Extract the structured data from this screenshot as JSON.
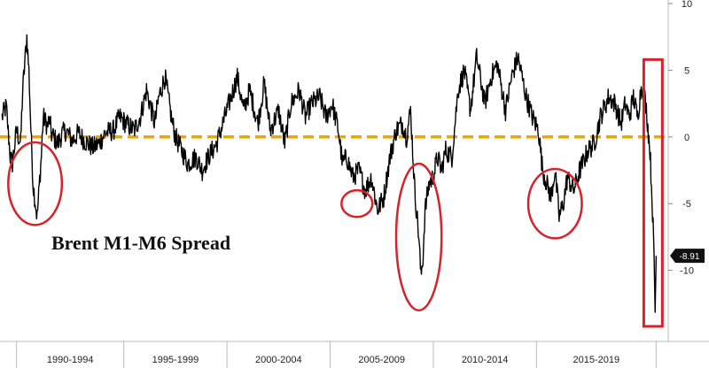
{
  "chart_data": {
    "type": "line",
    "title": "Brent M1-M6 Spread",
    "x_categories": [
      "1990-1994",
      "1995-1999",
      "2000-2004",
      "2005-2009",
      "2010-2014",
      "2015-2019"
    ],
    "ylim": [
      -15,
      10
    ],
    "y_ticks": [
      10,
      5,
      0,
      -5,
      -10
    ],
    "y_tick_labels": [
      "10",
      "5",
      "0",
      "-5",
      "-10"
    ],
    "y_axis_position": "right",
    "grid": false,
    "reference_line": {
      "value": 0,
      "color": "#f0a500",
      "style": "dashed"
    },
    "last_value": -8.91,
    "last_value_label": "-8.91",
    "series": [
      {
        "color": "#000000",
        "x": [
          1988.6,
          1988.8,
          1989.0,
          1989.1,
          1989.3,
          1989.5,
          1989.6,
          1989.8,
          1989.9,
          1990.0,
          1990.1,
          1990.3,
          1990.5,
          1990.6,
          1990.8,
          1990.9,
          1991.0,
          1991.1,
          1991.3,
          1991.5,
          1991.7,
          1992.0,
          1992.3,
          1992.6,
          1993.0,
          1993.3,
          1993.6,
          1994.0,
          1994.3,
          1994.6,
          1995.0,
          1995.3,
          1995.6,
          1996.0,
          1996.2,
          1996.5,
          1996.8,
          1997.0,
          1997.3,
          1997.6,
          1998.0,
          1998.3,
          1998.6,
          1999.0,
          1999.3,
          1999.6,
          2000.0,
          2000.3,
          2000.6,
          2001.0,
          2001.3,
          2001.6,
          2002.0,
          2002.3,
          2002.6,
          2003.0,
          2003.3,
          2003.6,
          2004.0,
          2004.3,
          2004.6,
          2004.9,
          2005.1,
          2005.3,
          2005.6,
          2005.9,
          2006.2,
          2006.5,
          2006.8,
          2007.1,
          2007.4,
          2007.7,
          2008.0,
          2008.2,
          2008.4,
          2008.6,
          2008.8,
          2008.9,
          2009.0,
          2009.1,
          2009.3,
          2009.5,
          2009.7,
          2009.9,
          2010.1,
          2010.4,
          2010.7,
          2011.0,
          2011.3,
          2011.6,
          2012.0,
          2012.3,
          2012.6,
          2013.0,
          2013.3,
          2013.6,
          2014.0,
          2014.3,
          2014.6,
          2014.8,
          2015.0,
          2015.2,
          2015.4,
          2015.6,
          2015.8,
          2016.0,
          2016.3,
          2016.6,
          2017.0,
          2017.3,
          2017.6,
          2018.0,
          2018.3,
          2018.6,
          2018.8,
          2019.0,
          2019.2,
          2019.4,
          2019.6,
          2019.8,
          2020.0,
          2020.1,
          2020.2,
          2020.25,
          2020.3
        ],
        "y": [
          1.5,
          2.3,
          -1.5,
          -2.0,
          0.5,
          -0.5,
          3.5,
          7.5,
          5.0,
          0.5,
          -3.5,
          -6.0,
          -1.5,
          1.5,
          0.8,
          1.3,
          0.2,
          0.0,
          -0.5,
          0.2,
          0.5,
          -0.3,
          0.3,
          -0.3,
          -0.8,
          -0.5,
          0.3,
          0.5,
          1.5,
          1.0,
          0.5,
          1.5,
          3.5,
          1.0,
          3.0,
          4.5,
          1.5,
          0.0,
          -1.0,
          -2.0,
          -1.5,
          -2.5,
          -1.5,
          -0.5,
          1.0,
          2.5,
          4.5,
          2.0,
          3.5,
          1.0,
          4.0,
          0.5,
          2.0,
          -0.5,
          2.5,
          3.5,
          1.5,
          2.5,
          3.0,
          1.5,
          2.5,
          0.5,
          -2.0,
          -1.5,
          -3.0,
          -2.5,
          -4.0,
          -3.0,
          -5.5,
          -4.5,
          -1.5,
          0.5,
          1.0,
          0.0,
          2.0,
          -4.0,
          -7.5,
          -10.5,
          -9.0,
          -5.5,
          -3.5,
          -3.0,
          -1.5,
          -2.5,
          -1.0,
          -1.5,
          3.5,
          5.0,
          2.0,
          6.0,
          2.5,
          4.5,
          5.5,
          2.0,
          4.5,
          6.0,
          3.0,
          1.5,
          0.5,
          -2.5,
          -3.5,
          -4.5,
          -2.5,
          -6.0,
          -5.0,
          -3.0,
          -4.0,
          -2.5,
          -1.0,
          -0.5,
          1.5,
          3.0,
          2.5,
          1.0,
          2.5,
          1.5,
          3.0,
          1.5,
          4.0,
          2.5,
          -1.0,
          -4.5,
          -9.0,
          -13.0,
          -8.91
        ]
      }
    ]
  },
  "annotations": {
    "ellipse_color": "#d4232a",
    "ellipses": [
      {
        "center_x": 1990.2,
        "center_y": -3.5,
        "half_width_years": 1.3,
        "half_height_units": 3.1
      },
      {
        "center_x": 2005.8,
        "center_y": -5.0,
        "half_width_years": 0.75,
        "half_height_units": 1.0
      },
      {
        "center_x": 2008.8,
        "center_y": -7.5,
        "half_width_years": 1.1,
        "half_height_units": 5.5
      },
      {
        "center_x": 2015.4,
        "center_y": -5.0,
        "half_width_years": 1.3,
        "half_height_units": 2.6
      }
    ],
    "box": {
      "x0": 2019.7,
      "x1": 2020.6,
      "y0": 5.8,
      "y1": -14.2
    }
  }
}
